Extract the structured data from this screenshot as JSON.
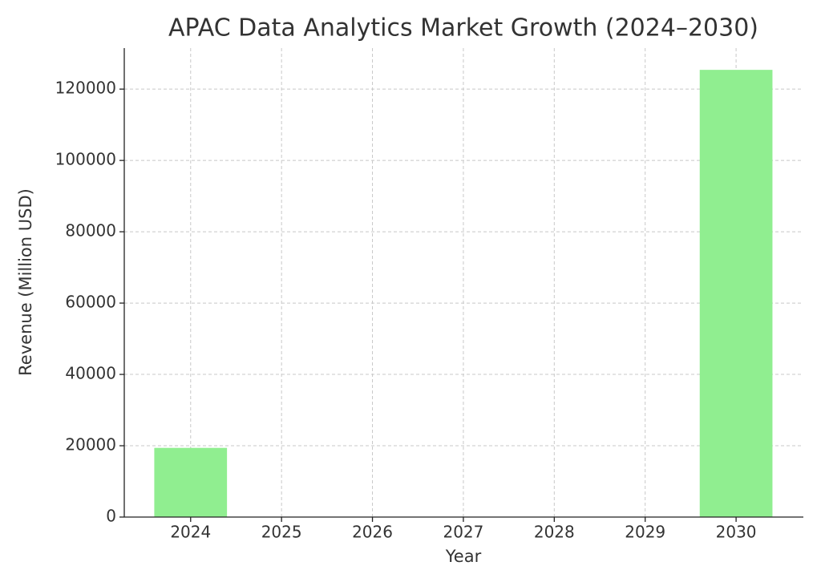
{
  "chart_data": {
    "type": "bar",
    "title": "APAC Data Analytics Market Growth (2024–2030)",
    "x_label": "Year",
    "y_label": "Revenue (Million USD)",
    "x": [
      2024,
      2030
    ],
    "values": [
      19400,
      125400
    ],
    "color": "#90ee90",
    "xlim": [
      2023.27,
      2030.74
    ],
    "xticks": [
      2024,
      2025,
      2026,
      2027,
      2028,
      2029,
      2030
    ],
    "ylim": [
      0,
      131500
    ],
    "yticks": [
      0,
      20000,
      40000,
      60000,
      80000,
      100000,
      120000
    ],
    "grid": true
  }
}
